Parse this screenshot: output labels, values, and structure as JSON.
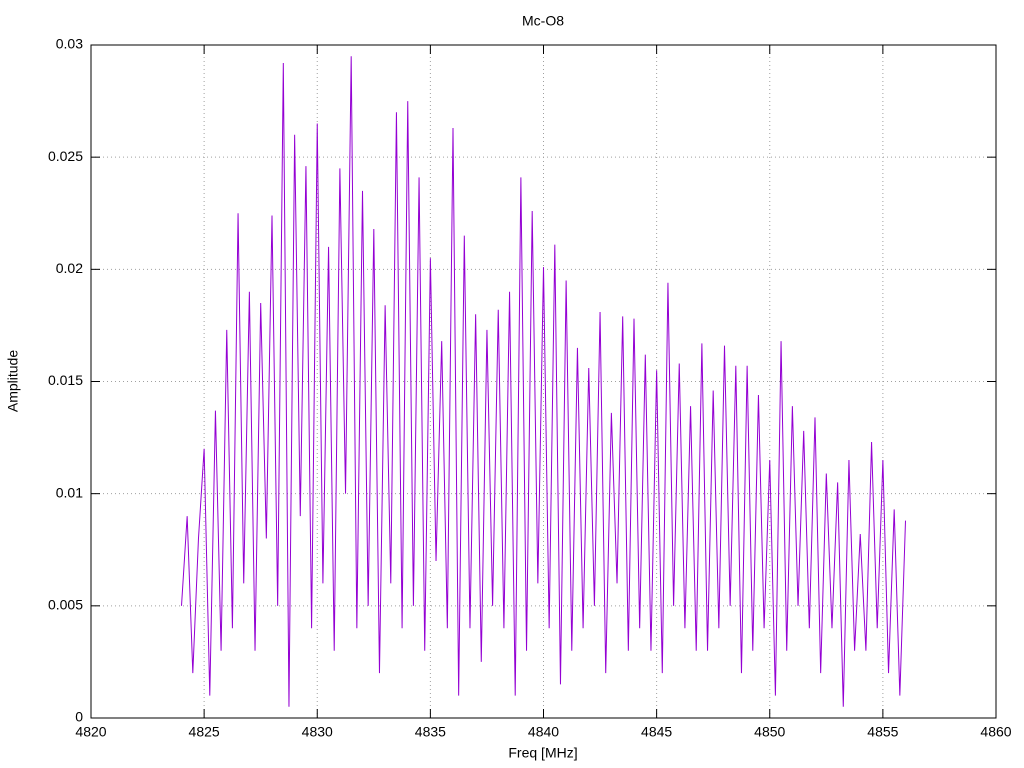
{
  "chart_data": {
    "type": "line",
    "title": "Mc-O8",
    "xlabel": "Freq [MHz]",
    "ylabel": "Amplitude",
    "xlim": [
      4820,
      4860
    ],
    "xticks": [
      4820,
      4825,
      4830,
      4835,
      4840,
      4845,
      4850,
      4855,
      4860
    ],
    "ylim": [
      0,
      0.03
    ],
    "yticks": [
      0,
      0.005,
      0.01,
      0.015,
      0.02,
      0.025,
      0.03
    ],
    "grid": true,
    "series": [
      {
        "color": "#9400d3",
        "x": [
          4824,
          4824.25,
          4824.5,
          4824.75,
          4825,
          4825.25,
          4825.5,
          4825.75,
          4826,
          4826.25,
          4826.5,
          4826.75,
          4827,
          4827.25,
          4827.5,
          4827.75,
          4828,
          4828.25,
          4828.5,
          4828.75,
          4829,
          4829.25,
          4829.5,
          4829.75,
          4830,
          4830.25,
          4830.5,
          4830.75,
          4831,
          4831.25,
          4831.5,
          4831.75,
          4832,
          4832.25,
          4832.5,
          4832.75,
          4833,
          4833.25,
          4833.5,
          4833.75,
          4834,
          4834.25,
          4834.5,
          4834.75,
          4835,
          4835.25,
          4835.5,
          4835.75,
          4836,
          4836.25,
          4836.5,
          4836.75,
          4837,
          4837.25,
          4837.5,
          4837.75,
          4838,
          4838.25,
          4838.5,
          4838.75,
          4839,
          4839.25,
          4839.5,
          4839.75,
          4840,
          4840.25,
          4840.5,
          4840.75,
          4841,
          4841.25,
          4841.5,
          4841.75,
          4842,
          4842.25,
          4842.5,
          4842.75,
          4843,
          4843.25,
          4843.5,
          4843.75,
          4844,
          4844.25,
          4844.5,
          4844.75,
          4845,
          4845.25,
          4845.5,
          4845.75,
          4846,
          4846.25,
          4846.5,
          4846.75,
          4847,
          4847.25,
          4847.5,
          4847.75,
          4848,
          4848.25,
          4848.5,
          4848.75,
          4849,
          4849.25,
          4849.5,
          4849.75,
          4850,
          4850.25,
          4850.5,
          4850.75,
          4851,
          4851.25,
          4851.5,
          4851.75,
          4852,
          4852.25,
          4852.5,
          4852.75,
          4853,
          4853.25,
          4853.5,
          4853.75,
          4854,
          4854.25,
          4854.5,
          4854.75,
          4855,
          4855.25,
          4855.5,
          4855.75,
          4856
        ],
        "values": [
          0.005,
          0.009,
          0.002,
          0.008,
          0.012,
          0.001,
          0.0137,
          0.003,
          0.0173,
          0.004,
          0.0225,
          0.006,
          0.019,
          0.003,
          0.0185,
          0.008,
          0.0224,
          0.005,
          0.0292,
          0.0005,
          0.026,
          0.009,
          0.0246,
          0.004,
          0.0265,
          0.006,
          0.021,
          0.003,
          0.0245,
          0.01,
          0.0295,
          0.004,
          0.0235,
          0.005,
          0.0218,
          0.002,
          0.0184,
          0.006,
          0.027,
          0.004,
          0.0275,
          0.005,
          0.0241,
          0.003,
          0.0205,
          0.007,
          0.0168,
          0.004,
          0.0263,
          0.001,
          0.0215,
          0.004,
          0.018,
          0.0025,
          0.0173,
          0.005,
          0.0182,
          0.004,
          0.019,
          0.001,
          0.0241,
          0.003,
          0.0226,
          0.006,
          0.0201,
          0.004,
          0.0211,
          0.0015,
          0.0195,
          0.003,
          0.0165,
          0.004,
          0.0156,
          0.005,
          0.0181,
          0.002,
          0.0136,
          0.006,
          0.0179,
          0.003,
          0.0178,
          0.004,
          0.0162,
          0.003,
          0.0155,
          0.002,
          0.0194,
          0.005,
          0.0158,
          0.004,
          0.0139,
          0.003,
          0.0167,
          0.003,
          0.0146,
          0.004,
          0.0166,
          0.005,
          0.0157,
          0.002,
          0.0157,
          0.003,
          0.0144,
          0.004,
          0.0115,
          0.001,
          0.0168,
          0.003,
          0.0139,
          0.005,
          0.0128,
          0.004,
          0.0134,
          0.002,
          0.0109,
          0.004,
          0.0105,
          0.0005,
          0.0115,
          0.003,
          0.0082,
          0.003,
          0.0123,
          0.004,
          0.0115,
          0.002,
          0.0093,
          0.001,
          0.0088
        ]
      }
    ]
  }
}
